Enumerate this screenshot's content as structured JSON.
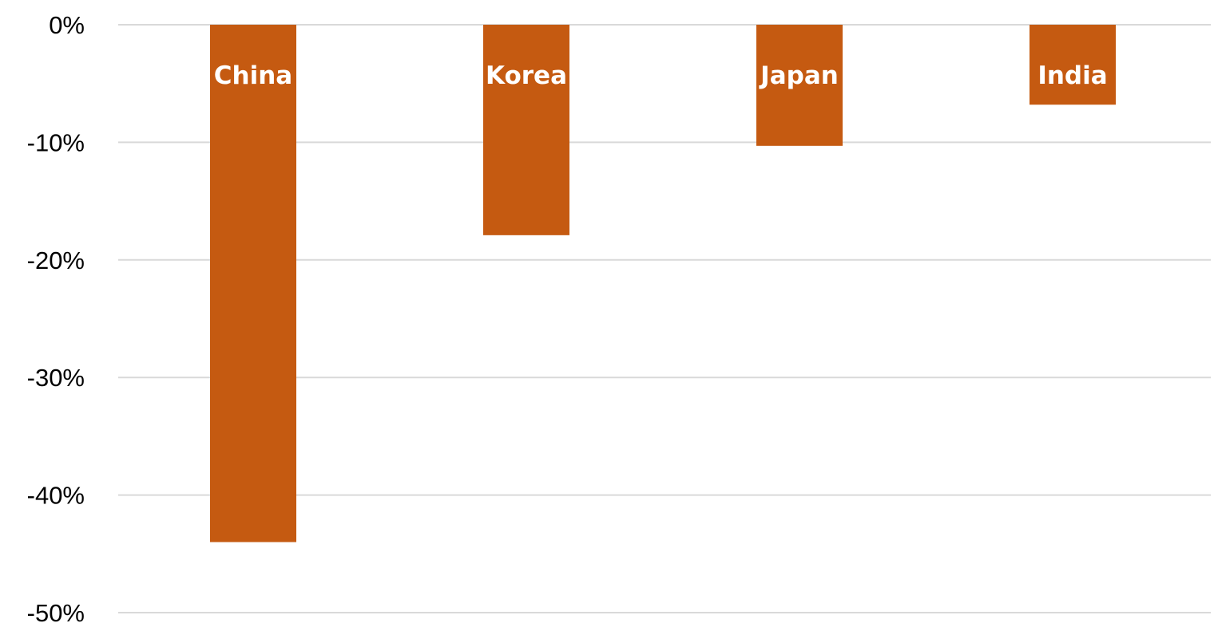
{
  "chart_data": {
    "type": "bar",
    "title": "",
    "xlabel": "",
    "ylabel": "",
    "categories": [
      "China",
      "Korea",
      "Japan",
      "India"
    ],
    "values": [
      -44,
      -17.9,
      -10.3,
      -6.8
    ],
    "ylim": [
      -50,
      0
    ],
    "y_ticks": [
      {
        "value": 0,
        "label": "0%"
      },
      {
        "value": -10,
        "label": "-10%"
      },
      {
        "value": -20,
        "label": "-20%"
      },
      {
        "value": -30,
        "label": "-30%"
      },
      {
        "value": -40,
        "label": "-40%"
      },
      {
        "value": -50,
        "label": "-50%"
      }
    ],
    "grid": true,
    "legend": "none",
    "data_labels": "category names inside bars",
    "bar_color": "#c55a11",
    "label_color": "#ffffff",
    "gridline_color": "#d9d9d9"
  }
}
